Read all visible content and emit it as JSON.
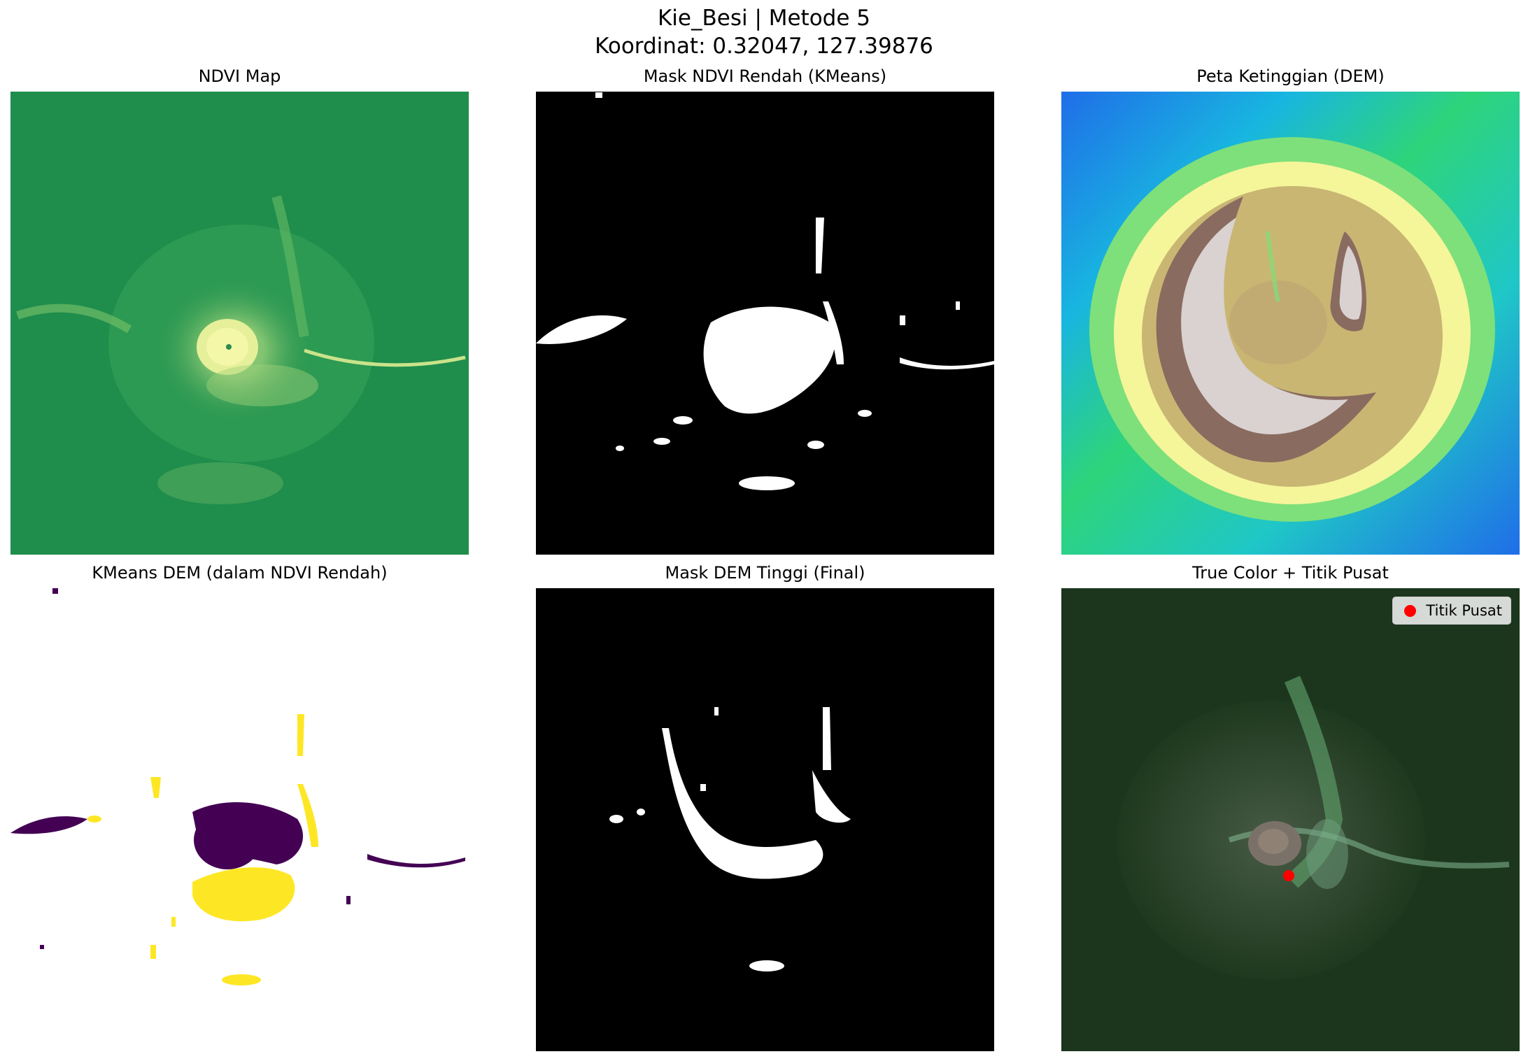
{
  "figure": {
    "title_line1": "Kie_Besi | Metode 5",
    "title_line2": "Koordinat: 0.32047, 127.39876"
  },
  "panels": [
    {
      "title": "NDVI Map",
      "colormap": "summer"
    },
    {
      "title": "Mask NDVI Rendah (KMeans)",
      "colormap": "binary"
    },
    {
      "title": "Peta Ketinggian (DEM)",
      "colormap": "terrain"
    },
    {
      "title": "KMeans DEM (dalam NDVI Rendah)",
      "colormap": "viridis"
    },
    {
      "title": "Mask DEM Tinggi (Final)",
      "colormap": "binary"
    },
    {
      "title": "True Color + Titik Pusat",
      "colormap": "rgb"
    }
  ],
  "legend": {
    "label": "Titik Pusat",
    "marker_color": "#ff0000"
  },
  "colors": {
    "ndvi_high": "#1a8a4a",
    "ndvi_low": "#f2f5a0",
    "viridis_low": "#440154",
    "viridis_high": "#fde725",
    "center_point": "#ff0000"
  }
}
